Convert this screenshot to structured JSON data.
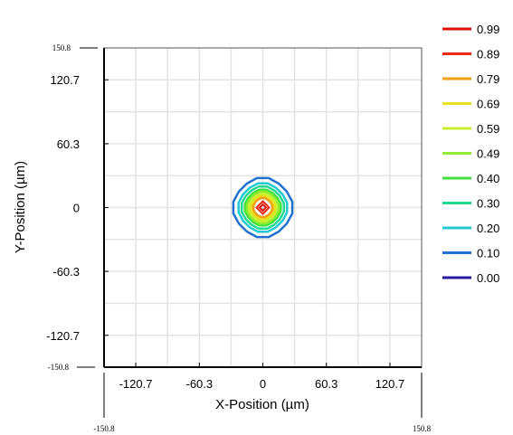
{
  "chart_data": {
    "type": "contour",
    "xlabel": "X-Position (µm)",
    "ylabel": "Y-Position (µm)",
    "xlim": [
      -150.8,
      150.8
    ],
    "ylim": [
      -150.8,
      150.8
    ],
    "x_tick_labels": [
      "-120.7",
      "-60.3",
      "0",
      "60.3",
      "120.7"
    ],
    "y_tick_labels": [
      "120.7",
      "60.3",
      "0",
      "-60.3",
      "-120.7"
    ],
    "x_ticks": [
      -120.7,
      -60.3,
      0,
      60.3,
      120.7
    ],
    "y_ticks": [
      120.7,
      60.3,
      0,
      -60.3,
      -120.7
    ],
    "x_limit_labels": [
      "-150.8",
      "150.8"
    ],
    "y_limit_labels": [
      "150.8",
      "-150.8"
    ],
    "grid": true,
    "legend_position": "right",
    "levels": [
      {
        "label": "0.99",
        "value": 0.99,
        "color": "#e01010",
        "radius": 3
      },
      {
        "label": "0.89",
        "value": 0.89,
        "color": "#ee2a10",
        "radius": 6
      },
      {
        "label": "0.79",
        "value": 0.79,
        "color": "#f0a010",
        "radius": 9
      },
      {
        "label": "0.69",
        "value": 0.69,
        "color": "#e8e020",
        "radius": 11
      },
      {
        "label": "0.59",
        "value": 0.59,
        "color": "#c8f030",
        "radius": 13
      },
      {
        "label": "0.49",
        "value": 0.49,
        "color": "#90ee30",
        "radius": 15
      },
      {
        "label": "0.40",
        "value": 0.4,
        "color": "#40e040",
        "radius": 17
      },
      {
        "label": "0.30",
        "value": 0.3,
        "color": "#20d890",
        "radius": 20
      },
      {
        "label": "0.20",
        "value": 0.2,
        "color": "#20c8d0",
        "radius": 23
      },
      {
        "label": "0.10",
        "value": 0.1,
        "color": "#2070d0",
        "radius": 28
      },
      {
        "label": "0.00",
        "value": 0.0,
        "color": "#2a1aa0",
        "radius": null
      }
    ]
  }
}
